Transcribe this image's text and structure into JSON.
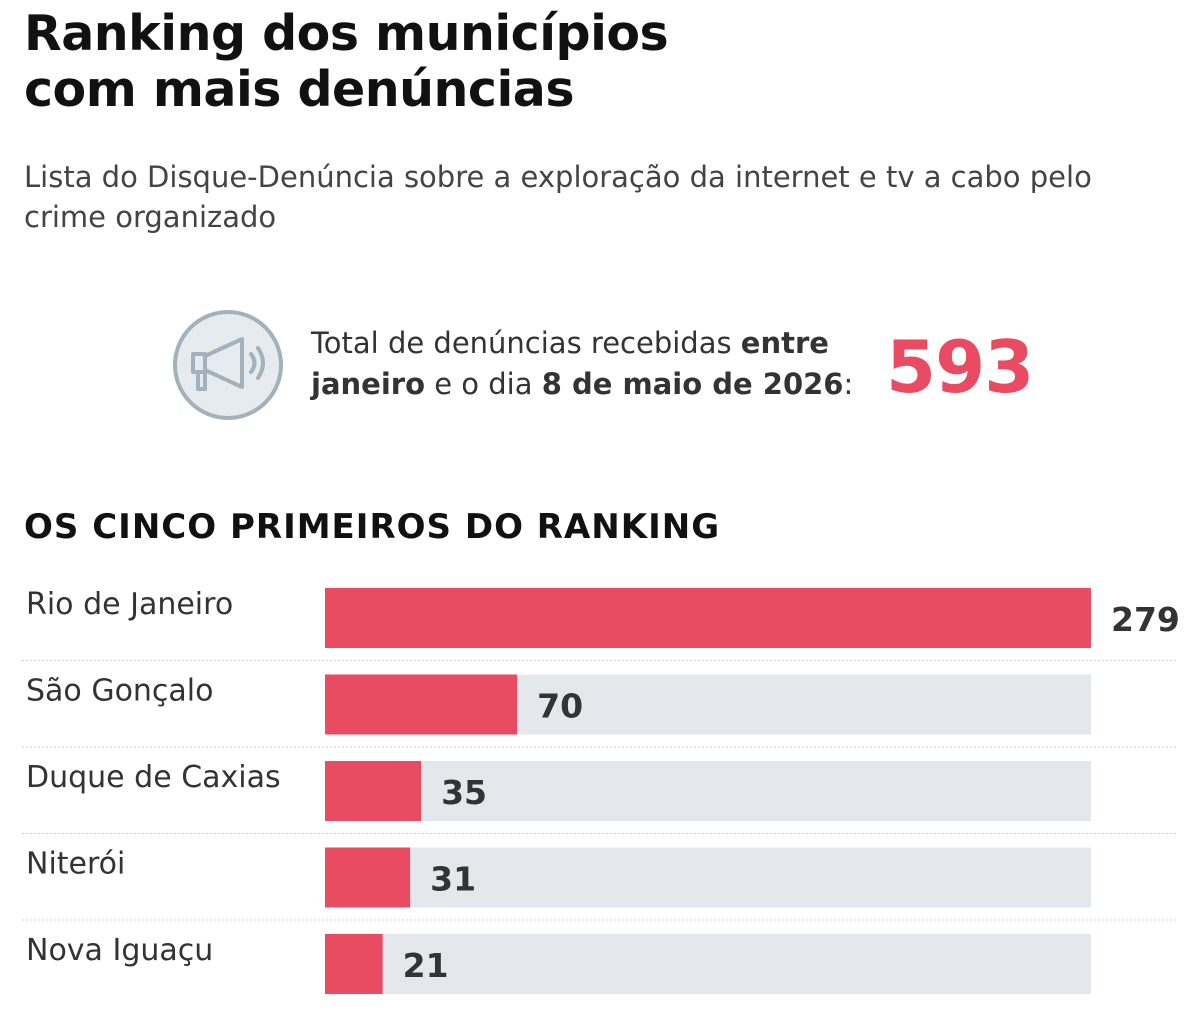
{
  "header": {
    "title_line1": "Ranking dos municípios",
    "title_line2": "com mais denúncias",
    "subtitle": "Lista do Disque-Denúncia sobre a exploração da internet e tv a cabo pelo crime organizado"
  },
  "total": {
    "icon": "megaphone-icon",
    "text_part1": "Total de denúncias recebidas ",
    "text_bold1": "entre janeiro",
    "text_part2": " e o dia ",
    "text_bold2": "8 de maio de 2026",
    "text_part3": ":",
    "value": "593"
  },
  "section": {
    "title": "OS CINCO PRIMEIROS DO RANKING"
  },
  "colors": {
    "accent": "#e94b63",
    "track": "#e4e8ed",
    "icon": "#a3b1bd"
  },
  "chart_data": {
    "type": "bar",
    "orientation": "horizontal",
    "categories": [
      "Rio de Janeiro",
      "São Gonçalo",
      "Duque de Caxias",
      "Niterói",
      "Nova Iguaçu"
    ],
    "values": [
      279,
      70,
      35,
      31,
      21
    ],
    "xlim": [
      0,
      279
    ]
  }
}
